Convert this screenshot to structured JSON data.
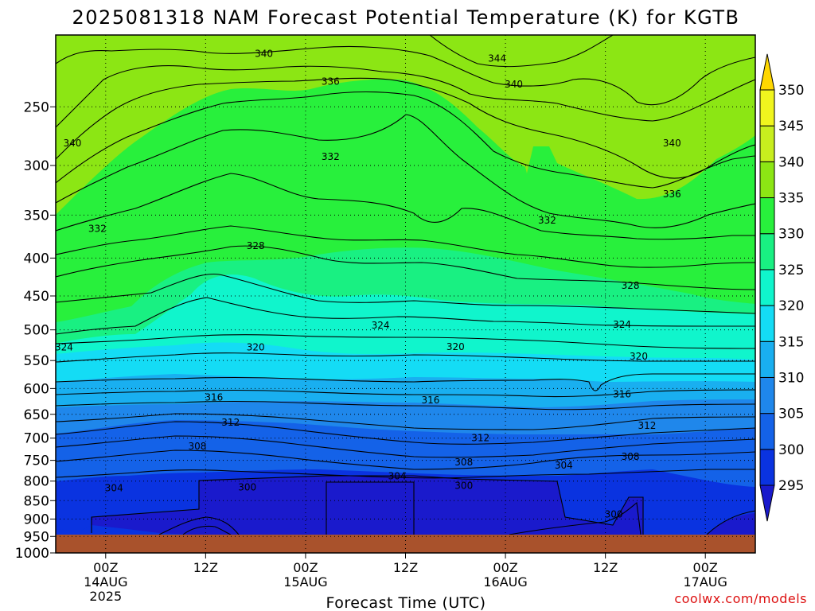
{
  "chart_data": {
    "type": "heatmap",
    "title": "2025081318 NAM Forecast Potential Temperature (K) for KGTB",
    "xlabel": "Forecast Time (UTC)",
    "ylabel": "",
    "y_scale": "log-pressure",
    "ylim": [
      1000,
      200
    ],
    "y_ticks": [
      "250",
      "300",
      "350",
      "400",
      "450",
      "500",
      "550",
      "600",
      "650",
      "700",
      "750",
      "800",
      "850",
      "900",
      "950",
      "1000"
    ],
    "x_ticks": [
      {
        "hour": 6,
        "line1": "00Z",
        "line2": "14AUG",
        "line3": "2025"
      },
      {
        "hour": 18,
        "line1": "12Z",
        "line2": "",
        "line3": ""
      },
      {
        "hour": 30,
        "line1": "00Z",
        "line2": "15AUG",
        "line3": ""
      },
      {
        "hour": 42,
        "line1": "12Z",
        "line2": "",
        "line3": ""
      },
      {
        "hour": 54,
        "line1": "00Z",
        "line2": "16AUG",
        "line3": ""
      },
      {
        "hour": 66,
        "line1": "12Z",
        "line2": "",
        "line3": ""
      },
      {
        "hour": 78,
        "line1": "00Z",
        "line2": "17AUG",
        "line3": ""
      }
    ],
    "x_range_hours": [
      0,
      84
    ],
    "colorbar": {
      "levels": [
        "295",
        "300",
        "305",
        "310",
        "315",
        "320",
        "325",
        "330",
        "335",
        "340",
        "345",
        "350"
      ],
      "colors": [
        "#1a1acc",
        "#0a33e0",
        "#1462e8",
        "#1f87eb",
        "#19aff0",
        "#14dcf5",
        "#10f5cc",
        "#19f082",
        "#28f03c",
        "#8ce614",
        "#c8ee1e",
        "#f0f51e",
        "#ffd700"
      ]
    },
    "isentrope_levels_K": [
      300,
      304,
      308,
      312,
      316,
      320,
      324,
      328,
      332,
      336,
      340,
      344
    ],
    "contour_labels": [
      {
        "text": "340",
        "hour": 25,
        "p": 212
      },
      {
        "text": "336",
        "hour": 33,
        "p": 231
      },
      {
        "text": "332",
        "hour": 33,
        "p": 292
      },
      {
        "text": "328",
        "hour": 24,
        "p": 385
      },
      {
        "text": "324",
        "hour": 1,
        "p": 528
      },
      {
        "text": "320",
        "hour": 24,
        "p": 528
      },
      {
        "text": "316",
        "hour": 19,
        "p": 617
      },
      {
        "text": "312",
        "hour": 21,
        "p": 667
      },
      {
        "text": "308",
        "hour": 17,
        "p": 718
      },
      {
        "text": "304",
        "hour": 7,
        "p": 818
      },
      {
        "text": "300",
        "hour": 23,
        "p": 815
      },
      {
        "text": "340",
        "hour": 2,
        "p": 280
      },
      {
        "text": "332",
        "hour": 5,
        "p": 365
      },
      {
        "text": "324",
        "hour": 39,
        "p": 493
      },
      {
        "text": "320",
        "hour": 48,
        "p": 527
      },
      {
        "text": "316",
        "hour": 45,
        "p": 622
      },
      {
        "text": "312",
        "hour": 51,
        "p": 700
      },
      {
        "text": "308",
        "hour": 49,
        "p": 754
      },
      {
        "text": "304",
        "hour": 41,
        "p": 788
      },
      {
        "text": "300",
        "hour": 49,
        "p": 811
      },
      {
        "text": "344",
        "hour": 53,
        "p": 215
      },
      {
        "text": "340",
        "hour": 55,
        "p": 233
      },
      {
        "text": "332",
        "hour": 59,
        "p": 356
      },
      {
        "text": "328",
        "hour": 69,
        "p": 436
      },
      {
        "text": "324",
        "hour": 68,
        "p": 492
      },
      {
        "text": "320",
        "hour": 70,
        "p": 543
      },
      {
        "text": "316",
        "hour": 68,
        "p": 611
      },
      {
        "text": "312",
        "hour": 71,
        "p": 673
      },
      {
        "text": "308",
        "hour": 69,
        "p": 741
      },
      {
        "text": "304",
        "hour": 61,
        "p": 762
      },
      {
        "text": "300",
        "hour": 67,
        "p": 887
      },
      {
        "text": "340",
        "hour": 74,
        "p": 280
      },
      {
        "text": "336",
        "hour": 74,
        "p": 328
      }
    ]
  },
  "credit": "coolwx.com/models"
}
